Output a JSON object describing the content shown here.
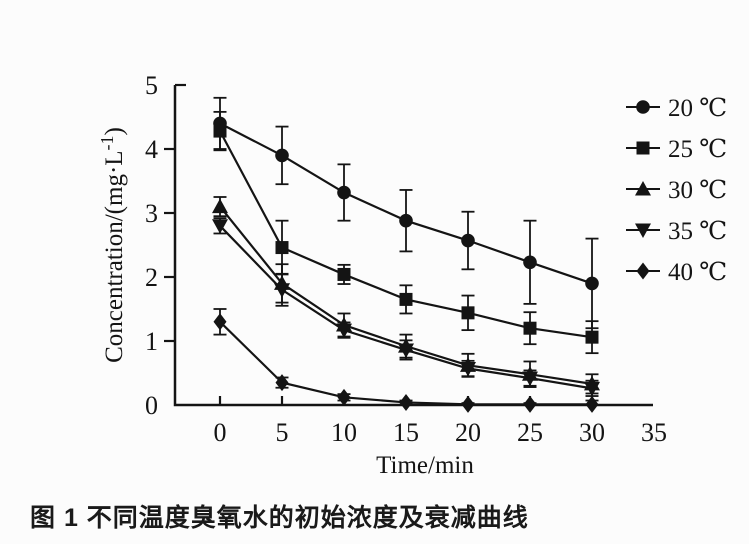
{
  "figure": {
    "caption": "图 1  不同温度臭氧水的初始浓度及衰减曲线"
  },
  "chart_data": {
    "type": "line",
    "title": "",
    "xlabel": "Time/min",
    "ylabel": "Concentration/(mg·L⁻¹)",
    "x": [
      0,
      5,
      10,
      15,
      20,
      25,
      30
    ],
    "xticks": [
      0,
      5,
      10,
      15,
      20,
      25,
      30,
      35
    ],
    "yticks": [
      0,
      1,
      2,
      3,
      4,
      5
    ],
    "xlim": [
      -3.6,
      35
    ],
    "ylim": [
      0,
      5
    ],
    "grid": false,
    "legend_position": "upper-right",
    "line_color": "#141414",
    "series": [
      {
        "name": "20 ℃",
        "marker": "circle",
        "values": [
          4.4,
          3.9,
          3.32,
          2.88,
          2.57,
          2.23,
          1.9
        ],
        "errors": [
          0.4,
          0.45,
          0.44,
          0.48,
          0.45,
          0.65,
          0.7
        ]
      },
      {
        "name": "25 ℃",
        "marker": "square",
        "values": [
          4.28,
          2.46,
          2.04,
          1.65,
          1.44,
          1.2,
          1.06
        ],
        "errors": [
          0.3,
          0.42,
          0.15,
          0.22,
          0.27,
          0.25,
          0.25
        ]
      },
      {
        "name": "30 ℃",
        "marker": "triangle-up",
        "values": [
          3.1,
          1.9,
          1.25,
          0.92,
          0.62,
          0.48,
          0.33
        ],
        "errors": [
          0.15,
          0.3,
          0.18,
          0.18,
          0.18,
          0.2,
          0.15
        ]
      },
      {
        "name": "35 ℃",
        "marker": "triangle-down",
        "values": [
          2.8,
          1.8,
          1.17,
          0.86,
          0.57,
          0.42,
          0.26
        ],
        "errors": [
          0.12,
          0.25,
          0.12,
          0.15,
          0.12,
          0.12,
          0.12
        ]
      },
      {
        "name": "40 ℃",
        "marker": "diamond",
        "values": [
          1.3,
          0.35,
          0.12,
          0.04,
          0.01,
          0.01,
          0.01
        ],
        "errors": [
          0.2,
          0.08,
          0.05,
          0.03,
          0.02,
          0.02,
          0.06
        ]
      }
    ]
  }
}
